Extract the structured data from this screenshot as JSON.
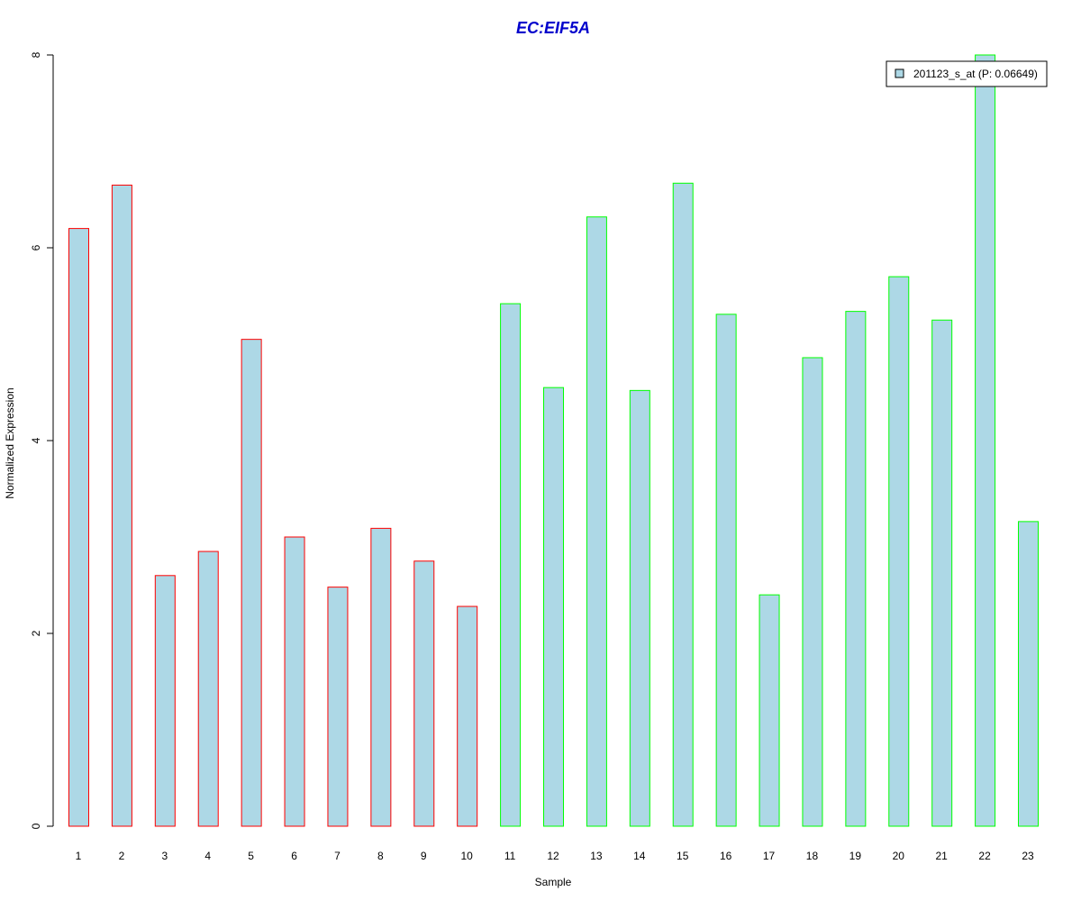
{
  "chart_data": {
    "type": "bar",
    "title": "EC:EIF5A",
    "xlabel": "Sample",
    "ylabel": "Normalized Expression",
    "ylim": [
      0,
      8
    ],
    "yticks": [
      0,
      2,
      4,
      6,
      8
    ],
    "categories": [
      "1",
      "2",
      "3",
      "4",
      "5",
      "6",
      "7",
      "8",
      "9",
      "10",
      "11",
      "12",
      "13",
      "14",
      "15",
      "16",
      "17",
      "18",
      "19",
      "20",
      "21",
      "22",
      "23"
    ],
    "series": [
      {
        "name": "201123_s_at (P: 0.06649)",
        "values": [
          6.2,
          6.65,
          2.6,
          2.85,
          5.05,
          3.0,
          2.48,
          3.09,
          2.75,
          2.28,
          5.42,
          4.55,
          6.32,
          4.52,
          6.67,
          5.31,
          2.4,
          4.86,
          5.34,
          5.7,
          5.25,
          8.0,
          3.16
        ]
      }
    ],
    "fill_color": "#ADD8E6",
    "border_colors": [
      "#FF0000",
      "#FF0000",
      "#FF0000",
      "#FF0000",
      "#FF0000",
      "#FF0000",
      "#FF0000",
      "#FF0000",
      "#FF0000",
      "#FF0000",
      "#00FF00",
      "#00FF00",
      "#00FF00",
      "#00FF00",
      "#00FF00",
      "#00FF00",
      "#00FF00",
      "#00FF00",
      "#00FF00",
      "#00FF00",
      "#00FF00",
      "#00FF00",
      "#00FF00"
    ],
    "title_color": "#0000CC",
    "legend_position": "top-right",
    "grid": false
  }
}
